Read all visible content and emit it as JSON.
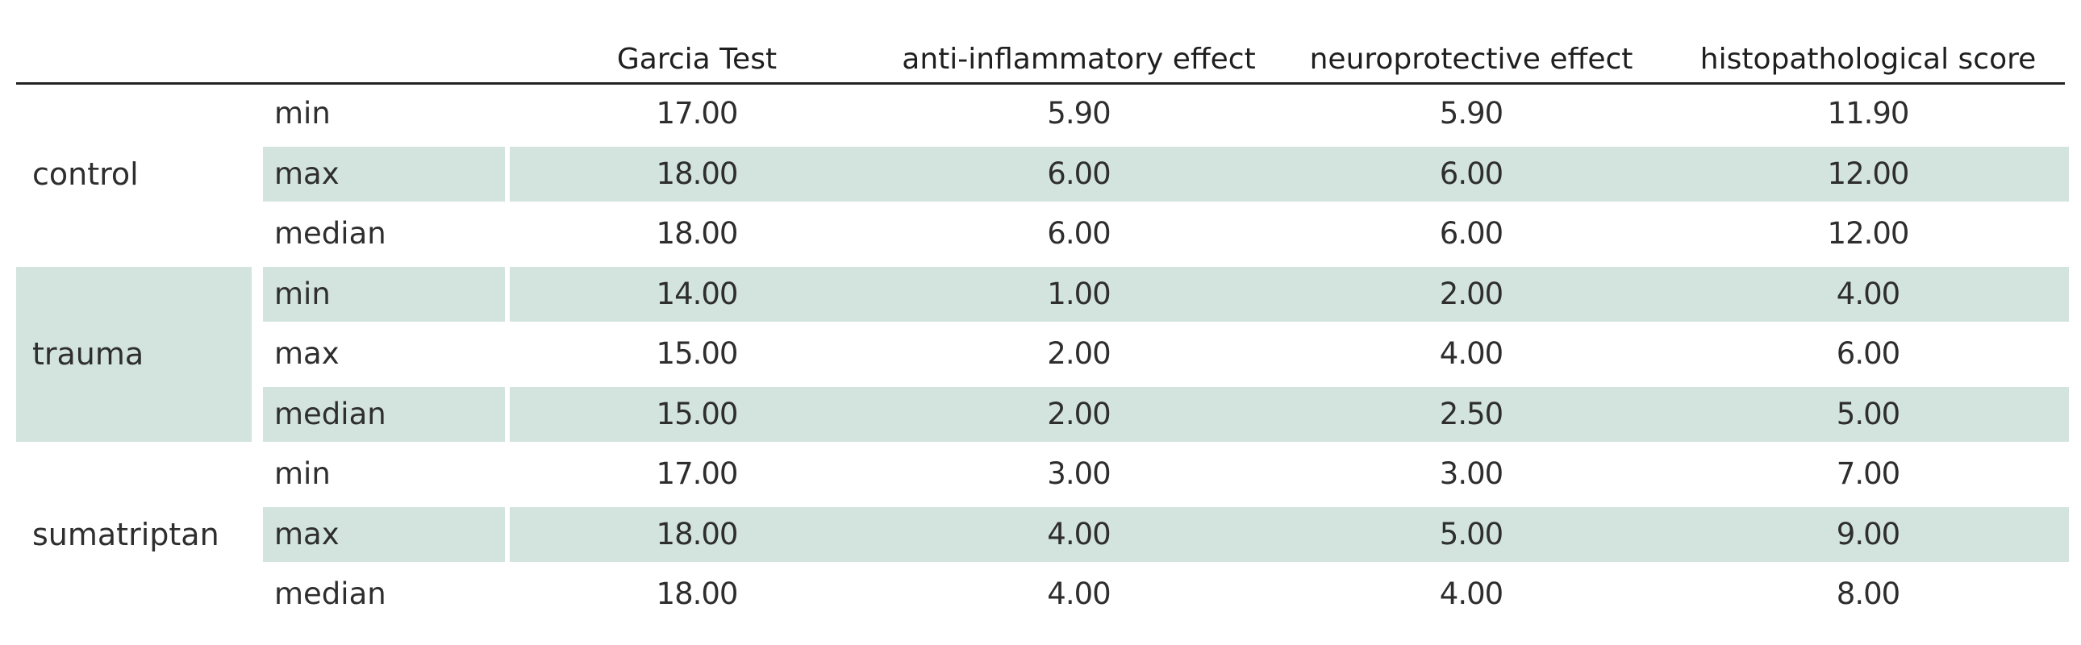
{
  "table": {
    "columns": [
      "Garcia Test",
      "anti-inflammatory effect",
      "neuroprotective effect",
      "histopathological score"
    ],
    "groups": [
      {
        "name": "control",
        "rows": [
          {
            "stat": "min",
            "values": [
              "17.00",
              "5.90",
              "5.90",
              "11.90"
            ]
          },
          {
            "stat": "max",
            "values": [
              "18.00",
              "6.00",
              "6.00",
              "12.00"
            ]
          },
          {
            "stat": "median",
            "values": [
              "18.00",
              "6.00",
              "6.00",
              "12.00"
            ]
          }
        ]
      },
      {
        "name": "trauma",
        "rows": [
          {
            "stat": "min",
            "values": [
              "14.00",
              "1.00",
              "2.00",
              "4.00"
            ]
          },
          {
            "stat": "max",
            "values": [
              "15.00",
              "2.00",
              "4.00",
              "6.00"
            ]
          },
          {
            "stat": "median",
            "values": [
              "15.00",
              "2.00",
              "2.50",
              "5.00"
            ]
          }
        ]
      },
      {
        "name": "sumatriptan",
        "rows": [
          {
            "stat": "min",
            "values": [
              "17.00",
              "3.00",
              "3.00",
              "7.00"
            ]
          },
          {
            "stat": "max",
            "values": [
              "18.00",
              "4.00",
              "5.00",
              "9.00"
            ]
          },
          {
            "stat": "median",
            "values": [
              "18.00",
              "4.00",
              "4.00",
              "8.00"
            ]
          }
        ]
      }
    ],
    "band_color": "#d3e4df",
    "rule_color": "#222222"
  }
}
